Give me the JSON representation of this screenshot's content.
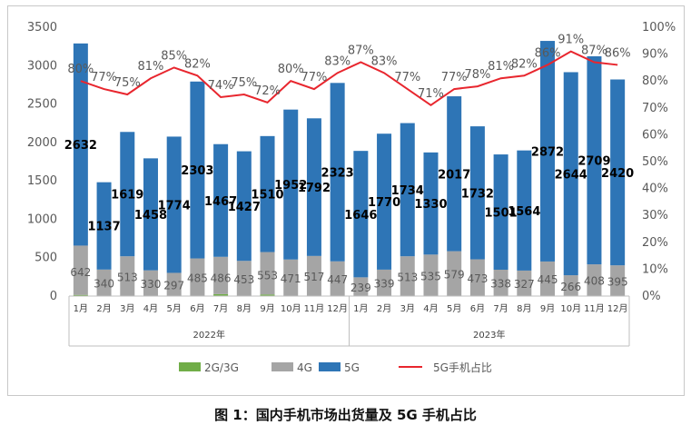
{
  "chart_data": {
    "type": "bar",
    "years": [
      "2022年",
      "2023年"
    ],
    "categories": [
      "1月",
      "2月",
      "3月",
      "4月",
      "5月",
      "6月",
      "7月",
      "8月",
      "9月",
      "10月",
      "11月",
      "12月",
      "1月",
      "2月",
      "3月",
      "4月",
      "5月",
      "6月",
      "7月",
      "8月",
      "9月",
      "10月",
      "11月",
      "12月"
    ],
    "series": [
      {
        "name": "2G/3G",
        "kind": "bar-stack",
        "color": "#70ad47",
        "values": [
          15,
          5,
          5,
          5,
          5,
          5,
          25,
          5,
          20,
          5,
          5,
          5,
          5,
          5,
          5,
          5,
          5,
          5,
          5,
          5,
          5,
          5,
          5,
          5
        ]
      },
      {
        "name": "4G",
        "kind": "bar-stack",
        "color": "#a5a5a5",
        "values": [
          642,
          340,
          513,
          330,
          297,
          485,
          486,
          453,
          553,
          471,
          517,
          447,
          239,
          339,
          513,
          535,
          579,
          473,
          338,
          327,
          445,
          266,
          408,
          395
        ],
        "labels": [
          "642",
          "340",
          "513",
          "330",
          "297",
          "485",
          "486",
          "453",
          "553",
          "471",
          "517",
          "447",
          "239",
          "339",
          "513",
          "535",
          "579",
          "473",
          "338",
          "327",
          "445",
          "266",
          "408",
          "395"
        ]
      },
      {
        "name": "5G",
        "kind": "bar-stack",
        "color": "#2e75b6",
        "values": [
          2632,
          1137,
          1619,
          1458,
          1774,
          2303,
          1467,
          1427,
          1510,
          1952,
          1792,
          2323,
          1646,
          1770,
          1734,
          1330,
          2017,
          1732,
          1501,
          1564,
          2872,
          2644,
          2709,
          2420
        ],
        "labels": [
          "2632",
          "1137",
          "1619",
          "1458",
          "1774",
          "2303",
          "1467",
          "1427",
          "1510",
          "1952",
          "1792",
          "2323",
          "1646",
          "1770",
          "1734",
          "1330",
          "2017",
          "1732",
          "1501",
          "1564",
          "2872",
          "2644",
          "2709",
          "2420"
        ]
      },
      {
        "name": "5G手机占比",
        "kind": "line",
        "axis": "right",
        "color": "#e8262e",
        "values": [
          80,
          77,
          75,
          81,
          85,
          82,
          74,
          75,
          72,
          80,
          77,
          83,
          87,
          83,
          77,
          71,
          77,
          78,
          81,
          82,
          86,
          91,
          87,
          86
        ],
        "labels": [
          "80%",
          "77%",
          "75%",
          "81%",
          "85%",
          "82%",
          "74%",
          "75%",
          "72%",
          "80%",
          "77%",
          "83%",
          "87%",
          "83%",
          "77%",
          "71%",
          "77%",
          "78%",
          "81%",
          "82%",
          "86%",
          "91%",
          "87%",
          "86%"
        ]
      }
    ],
    "y_left": {
      "min": 0,
      "max": 3500,
      "ticks": [
        "0",
        "500",
        "1000",
        "1500",
        "2000",
        "2500",
        "3000",
        "3500"
      ]
    },
    "y_right": {
      "min": 0,
      "max": 100,
      "ticks": [
        "0%",
        "10%",
        "20%",
        "30%",
        "40%",
        "50%",
        "60%",
        "70%",
        "80%",
        "90%",
        "100%"
      ]
    },
    "legend": {
      "placement": "bottom",
      "items": [
        "2G/3G",
        "4G",
        "5G",
        "5G手机占比"
      ]
    },
    "grid": false,
    "caption": "图 1：国内手机市场出货量及 5G 手机占比"
  }
}
